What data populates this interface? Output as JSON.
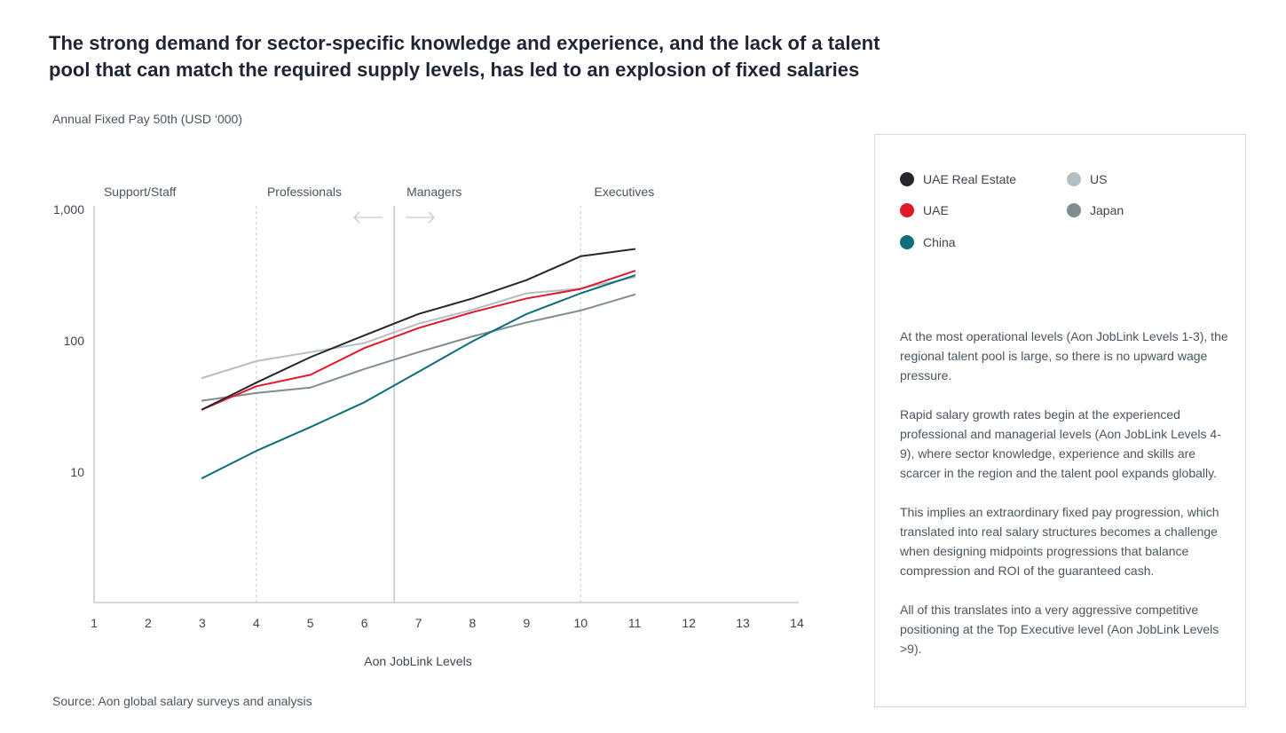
{
  "title_lines": [
    "The strong demand for sector-specific knowledge and experience, and the lack of a talent",
    "pool that can match the required supply levels, has led to an explosion of fixed salaries"
  ],
  "source": "Source: Aon global salary surveys and analysis",
  "chart_data": {
    "type": "line",
    "title": "",
    "xlabel": "Aon JobLink Levels",
    "ylabel": "Annual Fixed Pay 50th (USD ‘000)",
    "y_scale": "log",
    "ylim": [
      1,
      1000
    ],
    "xlim": [
      1,
      14
    ],
    "x_ticks": [
      "1",
      "2",
      "3",
      "4",
      "5",
      "6",
      "7",
      "8",
      "9",
      "10",
      "11",
      "12",
      "13",
      "14"
    ],
    "y_ticks": [
      {
        "value": 1000,
        "label": "1,000"
      },
      {
        "value": 100,
        "label": "100"
      },
      {
        "value": 10,
        "label": "10"
      }
    ],
    "regions": [
      {
        "label": "Support/Staff"
      },
      {
        "label": "Professionals"
      },
      {
        "label": "Managers"
      },
      {
        "label": "Executives"
      }
    ],
    "x": [
      3,
      4,
      5,
      6,
      7,
      8,
      9,
      10,
      11
    ],
    "series": [
      {
        "name": "US",
        "color": "#b4bfc4",
        "values": [
          52,
          70,
          82,
          96,
          135,
          172,
          230,
          250,
          305
        ]
      },
      {
        "name": "Japan",
        "color": "#7f8c92",
        "values": [
          35,
          40,
          44,
          61,
          82,
          108,
          138,
          170,
          225
        ]
      },
      {
        "name": "China",
        "color": "#0e6e7a",
        "values": [
          9,
          14.5,
          22,
          34,
          58,
          99,
          160,
          230,
          315
        ]
      },
      {
        "name": "UAE",
        "color": "#e01a2b",
        "values": [
          30,
          45,
          55,
          88,
          125,
          165,
          210,
          248,
          340
        ]
      },
      {
        "name": "UAE Real Estate",
        "color": "#25272f",
        "values": [
          30,
          48,
          75,
          110,
          160,
          210,
          290,
          440,
          500
        ]
      }
    ],
    "legend_position": "right panel",
    "grid": false
  },
  "legend": {
    "items": [
      {
        "label": "UAE Real Estate",
        "color": "#25272f"
      },
      {
        "label": "US",
        "color": "#b4bfc4"
      },
      {
        "label": "UAE",
        "color": "#e01a2b"
      },
      {
        "label": "Japan",
        "color": "#7f8c92"
      },
      {
        "label": "China",
        "color": "#0e6e7a"
      }
    ]
  },
  "notes": [
    "At the most operational levels (Aon JobLink Levels 1-3), the regional talent pool is large, so there is no upward wage pressure.",
    "Rapid salary growth rates begin at the experienced professional and managerial levels (Aon JobLink Levels 4-9),  where sector knowledge, experience and skills are scarcer in the region and the talent pool expands globally.",
    "This implies an extraordinary fixed pay progression, which translated into real salary structures becomes a challenge when designing midpoints progressions that balance compression and ROI of the guaranteed cash.",
    "All of this translates into a very aggressive competitive positioning at the Top Executive level (Aon JobLink Levels >9)."
  ]
}
